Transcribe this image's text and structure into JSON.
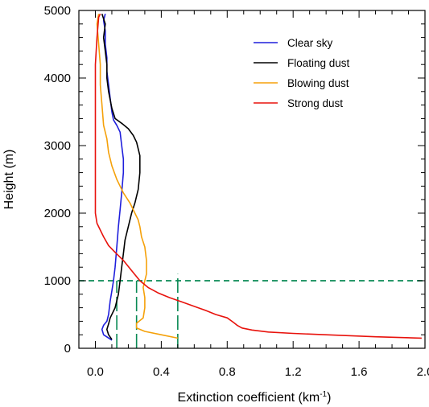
{
  "chart_data": {
    "type": "line",
    "xlabel": "Extinction coefficient (km",
    "xlabel_sup": "-1",
    "xlabel_end": ")",
    "ylabel": "Height (m)",
    "xlim": [
      -0.1,
      2.0
    ],
    "ylim": [
      0,
      5000
    ],
    "x_ticks": [
      0.0,
      0.4,
      0.8,
      1.2,
      1.6,
      2.0
    ],
    "x_tick_labels": [
      "0.0",
      "0.4",
      "0.8",
      "1.2",
      "1.6",
      "2.0"
    ],
    "y_ticks": [
      0,
      1000,
      2000,
      3000,
      4000,
      5000
    ],
    "y_tick_labels": [
      "0",
      "1000",
      "2000",
      "3000",
      "4000",
      "5000"
    ],
    "grid": false,
    "legend_placement": "top-right",
    "series": [
      {
        "name": "Clear sky",
        "color": "#1f1fdc",
        "points": [
          [
            0.1,
            120
          ],
          [
            0.05,
            200
          ],
          [
            0.04,
            280
          ],
          [
            0.05,
            340
          ],
          [
            0.07,
            400
          ],
          [
            0.08,
            500
          ],
          [
            0.09,
            700
          ],
          [
            0.1,
            850
          ],
          [
            0.11,
            1000
          ],
          [
            0.12,
            1200
          ],
          [
            0.13,
            1500
          ],
          [
            0.14,
            1800
          ],
          [
            0.15,
            2050
          ],
          [
            0.16,
            2300
          ],
          [
            0.17,
            2600
          ],
          [
            0.17,
            2800
          ],
          [
            0.16,
            3000
          ],
          [
            0.15,
            3200
          ],
          [
            0.13,
            3300
          ],
          [
            0.11,
            3380
          ],
          [
            0.1,
            3500
          ],
          [
            0.09,
            3700
          ],
          [
            0.08,
            3900
          ],
          [
            0.07,
            4100
          ],
          [
            0.07,
            4300
          ],
          [
            0.06,
            4500
          ],
          [
            0.06,
            4700
          ],
          [
            0.05,
            4850
          ],
          [
            0.06,
            4950
          ]
        ]
      },
      {
        "name": "Floating dust",
        "color": "#000000",
        "points": [
          [
            0.1,
            130
          ],
          [
            0.08,
            200
          ],
          [
            0.07,
            280
          ],
          [
            0.08,
            360
          ],
          [
            0.09,
            450
          ],
          [
            0.12,
            600
          ],
          [
            0.14,
            800
          ],
          [
            0.15,
            1000
          ],
          [
            0.16,
            1200
          ],
          [
            0.17,
            1400
          ],
          [
            0.18,
            1600
          ],
          [
            0.2,
            1800
          ],
          [
            0.22,
            2000
          ],
          [
            0.24,
            2150
          ],
          [
            0.26,
            2350
          ],
          [
            0.27,
            2600
          ],
          [
            0.27,
            2850
          ],
          [
            0.25,
            3050
          ],
          [
            0.23,
            3150
          ],
          [
            0.2,
            3250
          ],
          [
            0.16,
            3330
          ],
          [
            0.12,
            3400
          ],
          [
            0.1,
            3550
          ],
          [
            0.08,
            3800
          ],
          [
            0.07,
            4000
          ],
          [
            0.07,
            4200
          ],
          [
            0.06,
            4400
          ],
          [
            0.05,
            4600
          ],
          [
            0.06,
            4800
          ],
          [
            0.04,
            4950
          ]
        ]
      },
      {
        "name": "Blowing dust",
        "color": "#f5a10a",
        "points": [
          [
            0.5,
            150
          ],
          [
            0.4,
            200
          ],
          [
            0.3,
            250
          ],
          [
            0.25,
            300
          ],
          [
            0.25,
            370
          ],
          [
            0.29,
            450
          ],
          [
            0.3,
            600
          ],
          [
            0.3,
            750
          ],
          [
            0.29,
            900
          ],
          [
            0.3,
            1000
          ],
          [
            0.31,
            1100
          ],
          [
            0.31,
            1300
          ],
          [
            0.3,
            1500
          ],
          [
            0.28,
            1650
          ],
          [
            0.27,
            1800
          ],
          [
            0.26,
            1900
          ],
          [
            0.24,
            2000
          ],
          [
            0.21,
            2150
          ],
          [
            0.17,
            2300
          ],
          [
            0.13,
            2500
          ],
          [
            0.1,
            2700
          ],
          [
            0.08,
            2900
          ],
          [
            0.07,
            3100
          ],
          [
            0.05,
            3300
          ],
          [
            0.04,
            3600
          ],
          [
            0.03,
            3900
          ],
          [
            0.03,
            4200
          ],
          [
            0.02,
            4500
          ],
          [
            0.01,
            4800
          ],
          [
            0.02,
            4950
          ]
        ]
      },
      {
        "name": "Strong dust",
        "color": "#e8120c",
        "points": [
          [
            1.98,
            150
          ],
          [
            1.7,
            170
          ],
          [
            1.4,
            200
          ],
          [
            1.2,
            220
          ],
          [
            1.05,
            240
          ],
          [
            0.95,
            270
          ],
          [
            0.89,
            300
          ],
          [
            0.86,
            340
          ],
          [
            0.84,
            380
          ],
          [
            0.8,
            450
          ],
          [
            0.73,
            500
          ],
          [
            0.67,
            560
          ],
          [
            0.6,
            620
          ],
          [
            0.52,
            690
          ],
          [
            0.45,
            750
          ],
          [
            0.38,
            820
          ],
          [
            0.32,
            900
          ],
          [
            0.27,
            1000
          ],
          [
            0.22,
            1150
          ],
          [
            0.17,
            1300
          ],
          [
            0.12,
            1420
          ],
          [
            0.08,
            1520
          ],
          [
            0.05,
            1650
          ],
          [
            0.03,
            1750
          ],
          [
            0.01,
            1850
          ],
          [
            0.0,
            2000
          ],
          [
            0.0,
            2300
          ],
          [
            0.0,
            2700
          ],
          [
            0.0,
            3200
          ],
          [
            0.0,
            3700
          ],
          [
            0.0,
            4200
          ],
          [
            0.01,
            4600
          ],
          [
            0.02,
            4900
          ],
          [
            0.03,
            4950
          ]
        ]
      }
    ],
    "reference_lines": {
      "color": "#0a8a55",
      "horizontal": [
        {
          "y": 1000,
          "x_from": -0.1,
          "x_to": 2.0
        }
      ],
      "vertical": [
        {
          "x": 0.13,
          "y_from": 0,
          "y_to": 1000
        },
        {
          "x": 0.25,
          "y_from": 0,
          "y_to": 1000
        },
        {
          "x": 0.5,
          "y_from": 0,
          "y_to": 1100
        }
      ]
    }
  }
}
